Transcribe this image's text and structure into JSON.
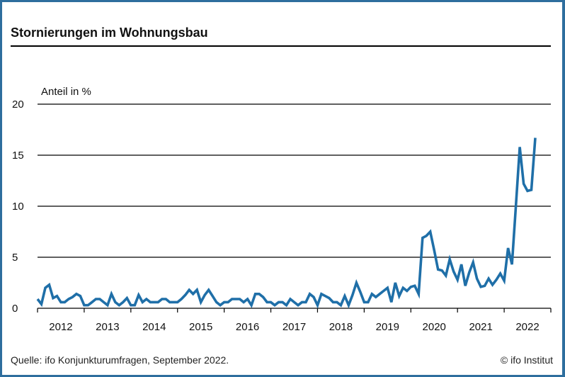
{
  "header": {
    "title": "Stornierungen im Wohnungsbau"
  },
  "footer": {
    "source": "Quelle: ifo Konjunkturumfragen, September 2022.",
    "copyright": "© ifo Institut"
  },
  "colors": {
    "line": "#1f6fa8",
    "frame": "#2e6e9e",
    "grid": "#000000"
  },
  "chart_data": {
    "type": "line",
    "title": "Stornierungen im Wohnungsbau",
    "ylabel": "Anteil in %",
    "xlabel": "",
    "ylim": [
      0,
      20
    ],
    "yticks": [
      0,
      5,
      10,
      15,
      20
    ],
    "grid": true,
    "legend": "none",
    "x_start": "2012-01",
    "x_end": "2022-09",
    "frequency": "monthly",
    "categories": [
      "2012",
      "2013",
      "2014",
      "2015",
      "2016",
      "2017",
      "2018",
      "2019",
      "2020",
      "2021",
      "2022"
    ],
    "series": [
      {
        "name": "Stornierungen im Wohnungsbau",
        "values": [
          0.9,
          0.4,
          2.0,
          2.3,
          1.0,
          1.2,
          0.6,
          0.6,
          0.9,
          1.1,
          1.4,
          1.2,
          0.3,
          0.3,
          0.6,
          0.9,
          0.9,
          0.6,
          0.3,
          1.4,
          0.6,
          0.3,
          0.6,
          1.0,
          0.3,
          0.3,
          1.3,
          0.6,
          0.9,
          0.6,
          0.6,
          0.6,
          0.9,
          0.9,
          0.6,
          0.6,
          0.6,
          0.9,
          1.3,
          1.8,
          1.4,
          1.8,
          0.6,
          1.3,
          1.8,
          1.2,
          0.6,
          0.3,
          0.6,
          0.6,
          0.9,
          0.9,
          0.9,
          0.6,
          0.9,
          0.3,
          1.4,
          1.4,
          1.1,
          0.6,
          0.6,
          0.3,
          0.6,
          0.6,
          0.3,
          0.9,
          0.6,
          0.3,
          0.6,
          0.6,
          1.4,
          1.1,
          0.3,
          1.4,
          1.2,
          1.0,
          0.6,
          0.6,
          0.3,
          1.2,
          0.3,
          1.3,
          2.5,
          1.6,
          0.6,
          0.6,
          1.4,
          1.1,
          1.4,
          1.7,
          2.0,
          0.6,
          2.5,
          1.2,
          2.0,
          1.7,
          2.1,
          2.2,
          1.4,
          6.9,
          7.1,
          7.5,
          5.7,
          3.8,
          3.7,
          3.2,
          4.8,
          3.6,
          2.8,
          4.3,
          2.2,
          3.5,
          4.5,
          2.9,
          2.1,
          2.2,
          2.9,
          2.3,
          2.8,
          3.4,
          2.7,
          5.9,
          4.3,
          10.0,
          15.8,
          12.2,
          11.5,
          11.6,
          16.7
        ]
      }
    ]
  }
}
